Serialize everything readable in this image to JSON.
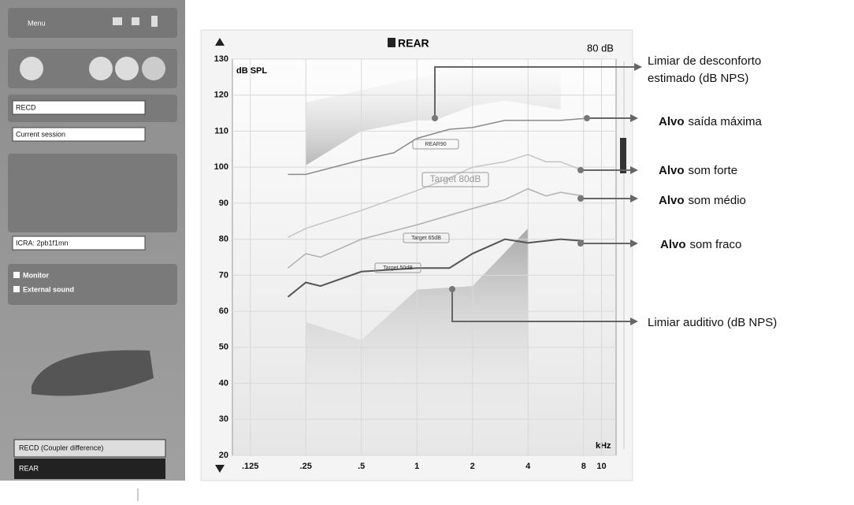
{
  "sidebar": {
    "menu": "Menu",
    "dropdowns": [
      "RECD",
      "Current session",
      "ICRA: 2pb1f1mn"
    ],
    "checkboxes": [
      "Monitor",
      "External sound"
    ],
    "tabs": [
      "RECD (Coupler difference)",
      "REAR"
    ]
  },
  "chart": {
    "type": "line",
    "title": "REAR",
    "level": "80 dB",
    "ylabel": "dB SPL",
    "xlabel": "kHz",
    "xscale": "log",
    "xlim": [
      0.1,
      12
    ],
    "xticks": [
      {
        "value": 0.125,
        "label": ".125"
      },
      {
        "value": 0.25,
        "label": ".25"
      },
      {
        "value": 0.5,
        "label": ".5"
      },
      1,
      2,
      4,
      8,
      10
    ],
    "ylim": [
      20,
      130
    ],
    "yticks": [
      20,
      30,
      40,
      50,
      60,
      70,
      80,
      90,
      100,
      110,
      120,
      130
    ],
    "grid": true,
    "series": [
      {
        "name": "REAR90",
        "color": "#8a8a8a",
        "x": [
          0.2,
          0.25,
          0.5,
          0.75,
          1,
          1.5,
          2,
          3,
          4,
          6,
          8
        ],
        "values": [
          98,
          98,
          102,
          104,
          108,
          110.5,
          111,
          113,
          113,
          113,
          113.5
        ]
      },
      {
        "name": "Target 80dB",
        "color": "#c4c4c4",
        "x": [
          0.2,
          0.25,
          0.5,
          1,
          1.5,
          2,
          3,
          4,
          5,
          6,
          8
        ],
        "values": [
          80.5,
          83,
          88,
          93.5,
          97,
          100,
          101.5,
          103.5,
          101.5,
          101.5,
          99
        ]
      },
      {
        "name": "Target 65dB",
        "color": "#b0b0b0",
        "x": [
          0.2,
          0.25,
          0.3,
          0.5,
          1,
          2,
          3,
          4,
          5,
          6,
          8
        ],
        "values": [
          72,
          76,
          75,
          80,
          84,
          88.5,
          91,
          94,
          92,
          93,
          92
        ]
      },
      {
        "name": "Target 50dB",
        "color": "#555555",
        "x": [
          0.2,
          0.25,
          0.3,
          0.5,
          1,
          1.5,
          2,
          3,
          4,
          6,
          8
        ],
        "values": [
          64,
          68,
          67,
          71,
          72,
          72,
          76,
          80,
          79,
          80,
          79.5
        ]
      }
    ],
    "ucl": {
      "x": [
        0.25,
        0.5,
        1,
        1.25,
        2,
        3,
        6
      ],
      "values": [
        100.5,
        110,
        113,
        113,
        117,
        118.5,
        116
      ]
    },
    "threshold": {
      "x": [
        0.25,
        0.5,
        1,
        2,
        4
      ],
      "values": [
        57,
        52,
        66,
        67,
        83
      ]
    }
  },
  "annotations": [
    {
      "lines": [
        "Limiar de desconforto",
        "estimado (dB NPS)"
      ]
    },
    {
      "bold": "Alvo",
      "text": "saída máxima"
    },
    {
      "bold": "Alvo",
      "text": "som forte"
    },
    {
      "bold": "Alvo",
      "text": "som médio"
    },
    {
      "bold": "Alvo",
      "text": "som fraco"
    },
    {
      "lines": [
        "Limiar auditivo  (dB NPS)"
      ]
    }
  ]
}
